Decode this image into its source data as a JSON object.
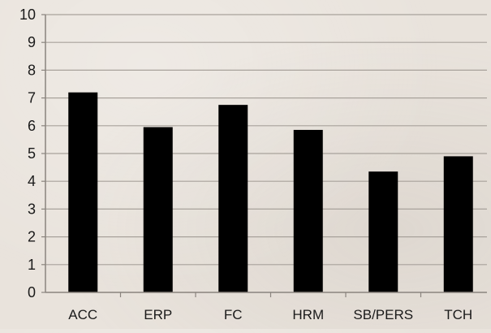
{
  "chart_data": {
    "type": "bar",
    "title": "",
    "xlabel": "",
    "ylabel": "",
    "categories": [
      "ACC",
      "ERP",
      "FC",
      "HRM",
      "SB/PERS",
      "TCH"
    ],
    "values": [
      7.2,
      5.95,
      6.75,
      5.85,
      4.35,
      4.9
    ],
    "ylim": [
      0,
      10
    ],
    "yticks": [
      "0",
      "1",
      "2",
      "3",
      "4",
      "5",
      "6",
      "7",
      "8",
      "9",
      "10"
    ],
    "grid": true,
    "legend": "none",
    "colors": {
      "bar": "#000000",
      "grid": "#a8a29b",
      "axis": "#8a847e",
      "text": "#1a1a1a",
      "background": "#e9e3dc"
    }
  }
}
